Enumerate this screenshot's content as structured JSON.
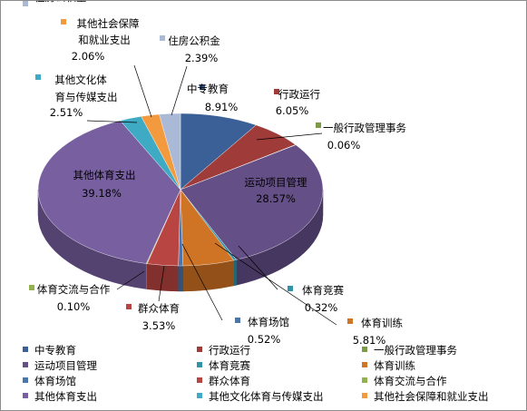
{
  "chart_data": {
    "type": "pie",
    "style": "3d-pie",
    "legend_position": "bottom",
    "slices": [
      {
        "name": "中专教育",
        "label_lines": [
          "中专教育"
        ],
        "value": 8.91,
        "pct_text": "8.91%",
        "color": "#3a6097",
        "side": "#27426b"
      },
      {
        "name": "行政运行",
        "label_lines": [
          "行政运行"
        ],
        "value": 6.05,
        "pct_text": "6.05%",
        "color": "#9f3b39",
        "side": "#702826"
      },
      {
        "name": "一般行政管理事务",
        "label_lines": [
          "一般行政管理事务"
        ],
        "value": 0.06,
        "pct_text": "0.06%",
        "color": "#7d9a46",
        "side": "#586d30"
      },
      {
        "name": "运动项目管理",
        "label_lines": [
          "运动项目管理"
        ],
        "value": 28.57,
        "pct_text": "28.57%",
        "color": "#654f87",
        "side": "#463760"
      },
      {
        "name": "体育竞赛",
        "label_lines": [
          "体育竞赛"
        ],
        "value": 0.32,
        "pct_text": "0.32%",
        "color": "#3193a8",
        "side": "#216777"
      },
      {
        "name": "体育训练",
        "label_lines": [
          "体育训练"
        ],
        "value": 5.81,
        "pct_text": "5.81%",
        "color": "#cf7424",
        "side": "#935119"
      },
      {
        "name": "体育场馆",
        "label_lines": [
          "体育场馆"
        ],
        "value": 0.52,
        "pct_text": "0.52%",
        "color": "#4a76ac",
        "side": "#33527a"
      },
      {
        "name": "群众体育",
        "label_lines": [
          "群众体育"
        ],
        "value": 3.53,
        "pct_text": "3.53%",
        "color": "#b84542",
        "side": "#82302e"
      },
      {
        "name": "体育交流与合作",
        "label_lines": [
          "体育交流与合作"
        ],
        "value": 0.1,
        "pct_text": "0.10%",
        "color": "#93b24f",
        "side": "#687e37"
      },
      {
        "name": "其他体育支出",
        "label_lines": [
          "其他体育支出"
        ],
        "value": 39.18,
        "pct_text": "39.18%",
        "color": "#7860a0",
        "side": "#544371"
      },
      {
        "name": "其他文化体育与传媒支出",
        "label_lines": [
          "其他文化体",
          "育与传媒支出"
        ],
        "value": 2.51,
        "pct_text": "2.51%",
        "color": "#3eaac3",
        "side": "#2b778a"
      },
      {
        "name": "其他社会保障和就业支出",
        "label_lines": [
          "其他社会保障",
          "和就业支出"
        ],
        "value": 2.06,
        "pct_text": "2.06%",
        "color": "#f39a3e",
        "side": "#ad6c2a"
      },
      {
        "name": "住房公积金",
        "label_lines": [
          "住房公积金"
        ],
        "value": 2.39,
        "pct_text": "2.39%",
        "color": "#a9b9d6",
        "side": "#7784a0"
      }
    ]
  }
}
